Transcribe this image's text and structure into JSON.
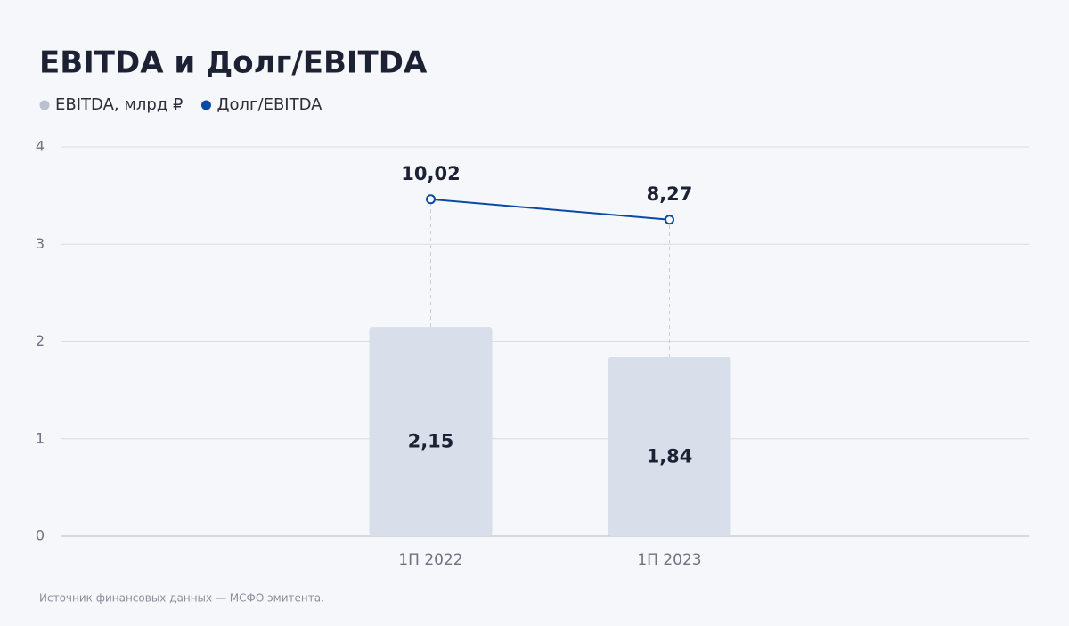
{
  "chart_data": {
    "type": "bar-line",
    "title": "EBITDA и Долг/EBITDA",
    "categories": [
      "1П 2022",
      "1П 2023"
    ],
    "series": [
      {
        "name": "EBITDA, млрд ₽",
        "color": "#d8dfea",
        "legend_color": "#b9c1cf",
        "values": [
          2.15,
          1.84
        ],
        "value_labels": [
          "2,15",
          "1,84"
        ]
      },
      {
        "name": "Долг/EBITDA",
        "color": "#0a4aa5",
        "axis": "y2",
        "values": [
          10.02,
          8.27
        ],
        "value_labels": [
          "10,02",
          "8,27"
        ]
      }
    ],
    "ylim": [
      0,
      4
    ],
    "yticks": [
      0,
      1,
      2,
      3,
      4
    ],
    "y2lim": [
      -18.8,
      14.5
    ],
    "grid": true,
    "source": "Источник финансовых данных — МСФО эмитента."
  }
}
